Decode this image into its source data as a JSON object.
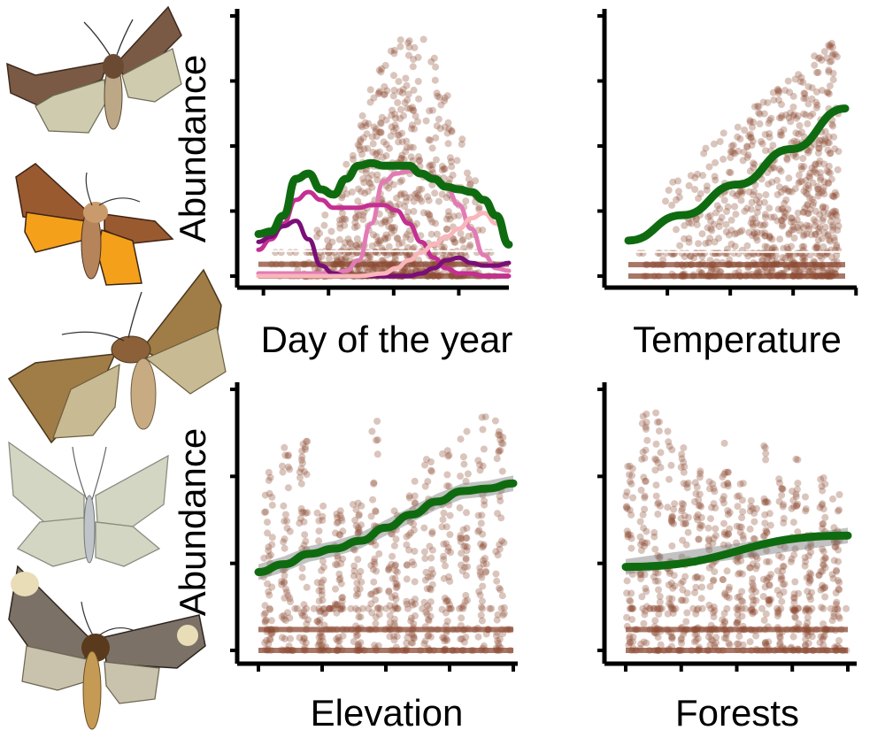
{
  "chart_data": [
    {
      "type": "scatter",
      "panel": "day",
      "xlabel": "Day of the year",
      "ylabel": "Abundance",
      "xlim": [
        0,
        1
      ],
      "ylim": [
        0,
        1
      ],
      "x_tick_count": 4,
      "y_tick_count": 5,
      "point_color": "#8B4A33",
      "series": [
        {
          "color": "#0f6b0f",
          "x": [
            0,
            0.05,
            0.1,
            0.15,
            0.2,
            0.25,
            0.3,
            0.35,
            0.4,
            0.45,
            0.5,
            0.55,
            0.6,
            0.65,
            0.7,
            0.75,
            0.8,
            0.85,
            0.9,
            0.95,
            1.0
          ],
          "values": [
            0.16,
            0.17,
            0.23,
            0.37,
            0.39,
            0.33,
            0.31,
            0.37,
            0.42,
            0.43,
            0.42,
            0.42,
            0.42,
            0.39,
            0.37,
            0.34,
            0.33,
            0.32,
            0.29,
            0.23,
            0.12
          ]
        },
        {
          "color": "#e27bb4",
          "x": [
            0,
            0.1,
            0.2,
            0.3,
            0.35,
            0.4,
            0.45,
            0.5,
            0.55,
            0.6,
            0.65,
            0.7,
            0.75,
            0.8,
            0.85,
            0.9,
            0.95,
            1.0
          ],
          "values": [
            0.01,
            0.01,
            0.01,
            0.01,
            0.02,
            0.06,
            0.2,
            0.36,
            0.39,
            0.4,
            0.39,
            0.38,
            0.34,
            0.27,
            0.18,
            0.08,
            0.03,
            0.02
          ]
        },
        {
          "color": "#c42f92",
          "x": [
            0,
            0.05,
            0.1,
            0.15,
            0.2,
            0.25,
            0.3,
            0.35,
            0.4,
            0.45,
            0.5,
            0.55,
            0.6,
            0.65,
            0.7,
            0.75,
            0.8,
            0.85,
            0.9,
            0.95,
            1.0
          ],
          "values": [
            0.1,
            0.14,
            0.2,
            0.29,
            0.32,
            0.29,
            0.26,
            0.26,
            0.26,
            0.27,
            0.27,
            0.25,
            0.2,
            0.13,
            0.07,
            0.03,
            0.01,
            0.01,
            0.0,
            0.0,
            0.0
          ]
        },
        {
          "color": "#7a0f77",
          "x": [
            0,
            0.05,
            0.1,
            0.15,
            0.2,
            0.25,
            0.3,
            0.35,
            0.4,
            0.45,
            0.5,
            0.55,
            0.6,
            0.65,
            0.7,
            0.75,
            0.8,
            0.85,
            0.9,
            0.95,
            1.0
          ],
          "values": [
            0.13,
            0.15,
            0.19,
            0.21,
            0.14,
            0.04,
            0.01,
            0.0,
            0.0,
            0.0,
            0.0,
            0.0,
            0.0,
            0.01,
            0.03,
            0.06,
            0.07,
            0.05,
            0.04,
            0.04,
            0.05
          ]
        },
        {
          "color": "#f9b6bb",
          "x": [
            0,
            0.4,
            0.5,
            0.55,
            0.6,
            0.65,
            0.7,
            0.75,
            0.8,
            0.85,
            0.9,
            0.95,
            1.0
          ],
          "values": [
            0.0,
            0.0,
            0.01,
            0.03,
            0.06,
            0.09,
            0.12,
            0.15,
            0.18,
            0.22,
            0.24,
            0.2,
            0.12
          ]
        }
      ]
    },
    {
      "type": "scatter",
      "panel": "temperature",
      "xlabel": "Temperature",
      "ylabel": "",
      "xlim": [
        0,
        1
      ],
      "ylim": [
        0,
        1
      ],
      "x_tick_count": 4,
      "y_tick_count": 5,
      "point_color": "#8B4A33",
      "series": [
        {
          "color": "#0f6b0f",
          "x": [
            0,
            0.25,
            0.5,
            0.75,
            1.0
          ],
          "values": [
            0.14,
            0.24,
            0.36,
            0.5,
            0.66
          ]
        }
      ]
    },
    {
      "type": "scatter",
      "panel": "elevation",
      "xlabel": "Elevation",
      "ylabel": "Abundance",
      "xlim": [
        0,
        1
      ],
      "ylim": [
        0,
        1
      ],
      "x_tick_count": 5,
      "y_tick_count": 4,
      "point_color": "#8B4A33",
      "series": [
        {
          "color": "#0f6b0f",
          "x": [
            0,
            0.1,
            0.2,
            0.3,
            0.4,
            0.5,
            0.6,
            0.7,
            0.8,
            0.9,
            1.0
          ],
          "values": [
            0.3,
            0.33,
            0.37,
            0.39,
            0.42,
            0.47,
            0.52,
            0.57,
            0.61,
            0.62,
            0.64
          ]
        }
      ]
    },
    {
      "type": "scatter",
      "panel": "forests",
      "xlabel": "Forests",
      "ylabel": "",
      "xlim": [
        0,
        1
      ],
      "ylim": [
        0,
        1
      ],
      "x_tick_count": 5,
      "y_tick_count": 4,
      "point_color": "#8B4A33",
      "series": [
        {
          "color": "#0f6b0f",
          "x": [
            0,
            1.0
          ],
          "values": [
            0.32,
            0.44
          ]
        }
      ]
    }
  ],
  "illustrations": [
    {
      "icon": "noctuid-moth-brown"
    },
    {
      "icon": "orange-underwing-moth"
    },
    {
      "icon": "olive-brown-moth"
    },
    {
      "icon": "pale-green-geometrid-moth"
    },
    {
      "icon": "dark-patterned-moth"
    }
  ]
}
